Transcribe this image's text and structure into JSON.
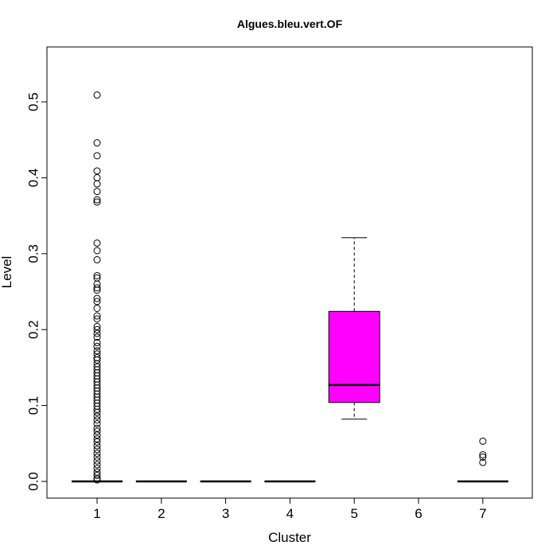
{
  "chart_data": {
    "type": "box",
    "title": "Algues.bleu.vert.OF",
    "xlabel": "Cluster",
    "ylabel": "Level",
    "categories": [
      "1",
      "2",
      "3",
      "4",
      "5",
      "6",
      "7"
    ],
    "ylim": [
      -0.023,
      0.58
    ],
    "yticks": [
      0.0,
      0.1,
      0.2,
      0.3,
      0.4,
      0.5
    ],
    "ytick_labels": [
      "0.0",
      "0.1",
      "0.2",
      "0.3",
      "0.4",
      "0.5"
    ],
    "grid": false,
    "box_fill_color": "#ff00ff",
    "boxes": [
      {
        "category": "1",
        "q1": 0.0,
        "median": 0.0,
        "q3": 0.0,
        "whisker_low": 0.0,
        "whisker_high": 0.0,
        "outliers": [
          0.509,
          0.446,
          0.429,
          0.409,
          0.4,
          0.392,
          0.382,
          0.371,
          0.368,
          0.314,
          0.304,
          0.292,
          0.271,
          0.268,
          0.26,
          0.255,
          0.252,
          0.241,
          0.237,
          0.228,
          0.218,
          0.214,
          0.204,
          0.2,
          0.195,
          0.19,
          0.183,
          0.178,
          0.172,
          0.168,
          0.163,
          0.16,
          0.155,
          0.151,
          0.147,
          0.143,
          0.139,
          0.135,
          0.131,
          0.127,
          0.123,
          0.119,
          0.115,
          0.111,
          0.107,
          0.103,
          0.099,
          0.095,
          0.091,
          0.086,
          0.081,
          0.076,
          0.07,
          0.066,
          0.061,
          0.056,
          0.052,
          0.047,
          0.042,
          0.037,
          0.032,
          0.027,
          0.022,
          0.017,
          0.012,
          0.008,
          0.004,
          0.002
        ]
      },
      {
        "category": "2",
        "q1": 0.0,
        "median": 0.0,
        "q3": 0.0,
        "whisker_low": 0.0,
        "whisker_high": 0.0,
        "outliers": []
      },
      {
        "category": "3",
        "q1": 0.0,
        "median": 0.0,
        "q3": 0.0,
        "whisker_low": 0.0,
        "whisker_high": 0.0,
        "outliers": []
      },
      {
        "category": "4",
        "q1": 0.0,
        "median": 0.0,
        "q3": 0.0,
        "whisker_low": 0.0,
        "whisker_high": 0.0,
        "outliers": []
      },
      {
        "category": "5",
        "q1": 0.104,
        "median": 0.127,
        "q3": 0.224,
        "whisker_low": 0.082,
        "whisker_high": 0.321,
        "outliers": [],
        "filled": true
      },
      {
        "category": "6",
        "empty": true,
        "outliers": []
      },
      {
        "category": "7",
        "q1": 0.0,
        "median": 0.0,
        "q3": 0.0,
        "whisker_low": 0.0,
        "whisker_high": 0.0,
        "outliers": [
          0.053,
          0.035,
          0.032,
          0.025
        ]
      }
    ]
  }
}
